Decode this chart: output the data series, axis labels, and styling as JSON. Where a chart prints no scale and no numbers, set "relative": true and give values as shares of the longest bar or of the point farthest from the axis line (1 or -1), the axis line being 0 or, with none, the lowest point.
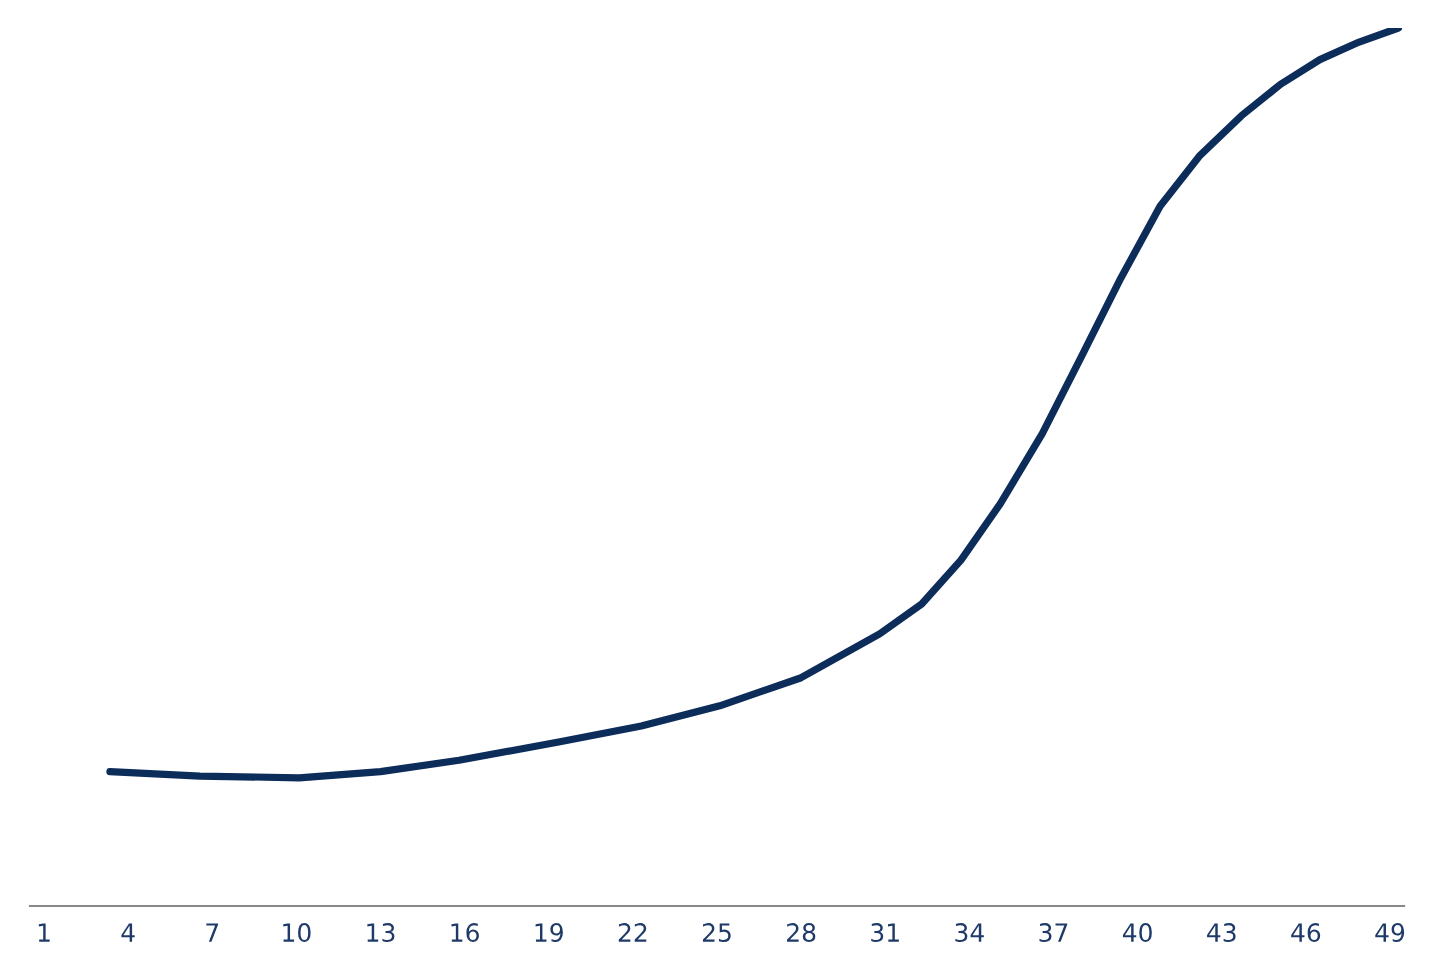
{
  "chart_data": {
    "type": "line",
    "relative": true,
    "xlim": [
      0.5,
      49.5
    ],
    "xticks": [
      1,
      4,
      7,
      10,
      13,
      16,
      19,
      22,
      25,
      28,
      31,
      34,
      37,
      40,
      43,
      46,
      49
    ],
    "series": [
      {
        "color": "#0c2c5a",
        "x": [
          3.35,
          6.56,
          10.1,
          13.0,
          15.8,
          19.4,
          22.3,
          25.1,
          28.0,
          30.8,
          32.3,
          33.7,
          35.1,
          36.6,
          38.0,
          39.4,
          40.8,
          42.2,
          43.7,
          45.1,
          46.5,
          47.9,
          49.3
        ],
        "values": [
          0.153,
          0.148,
          0.146,
          0.153,
          0.166,
          0.187,
          0.205,
          0.228,
          0.26,
          0.31,
          0.344,
          0.394,
          0.458,
          0.538,
          0.626,
          0.715,
          0.797,
          0.854,
          0.9,
          0.936,
          0.964,
          0.984,
          1.0
        ]
      }
    ],
    "grid": false,
    "legend": false,
    "marker": "none",
    "line_style": "solid"
  }
}
